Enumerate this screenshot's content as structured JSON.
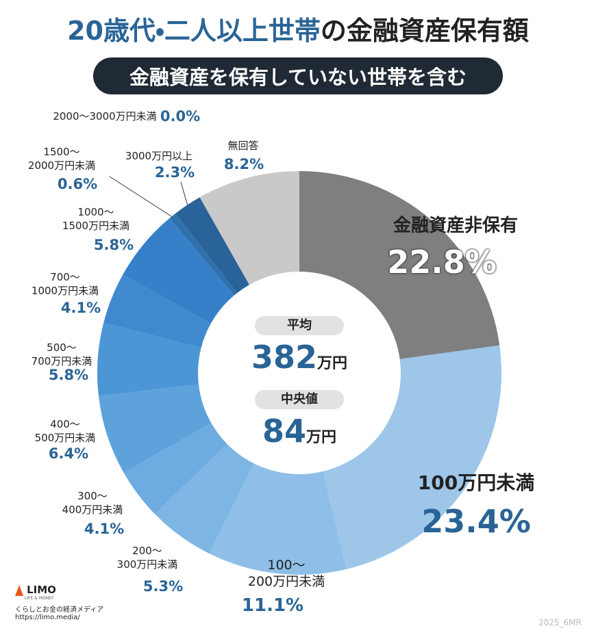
{
  "chart_data": {
    "type": "donut",
    "title": [
      "20歳代・二人以上世帯",
      "の金融資産保有額"
    ],
    "subtitle": "金融資産を保有していない世帯を含む",
    "categories": [
      "金融資産非保有",
      "100万円未満",
      "100～\n200万円未満",
      "200～\n300万円未満",
      "300～\n400万円未満",
      "400～\n500万円未満",
      "500～\n700万円未満",
      "700～\n1000万円未満",
      "1000～\n1500万円未満",
      "1500～\n2000万円未満",
      "2000～3000万円未満",
      "3000万円以上",
      "無回答"
    ],
    "values": [
      22.8,
      23.4,
      11.1,
      5.3,
      4.1,
      6.4,
      5.8,
      4.1,
      5.8,
      0.6,
      0.0,
      2.3,
      8.2
    ],
    "value_labels": [
      "22.8%",
      "23.4%",
      "11.1%",
      "5.3%",
      "4.1%",
      "6.4%",
      "5.8%",
      "4.1%",
      "5.8%",
      "0.6%",
      "0.0%",
      "2.3%",
      "8.2%"
    ],
    "colors": [
      "#7f7f7f",
      "#9dc6e9",
      "#8fbfe8",
      "#7db5e3",
      "#6eabe0",
      "#5ea2dc",
      "#4c96d6",
      "#4189cf",
      "#3580c8",
      "#2f70ad",
      "#2b6aa5",
      "#2a6399",
      "#c9c9c9"
    ],
    "center": {
      "mean_label": "平均",
      "mean_value": 382,
      "mean_unit": "万円",
      "median_label": "中央値",
      "median_value": 84,
      "median_unit": "万円"
    }
  },
  "footer": {
    "logo": "LIMO",
    "logo_sub": "LIFE & MONEY",
    "tagline": "くらしとお金の経済メディア",
    "url": "https://limo.media/",
    "code": "2025_6MR"
  }
}
